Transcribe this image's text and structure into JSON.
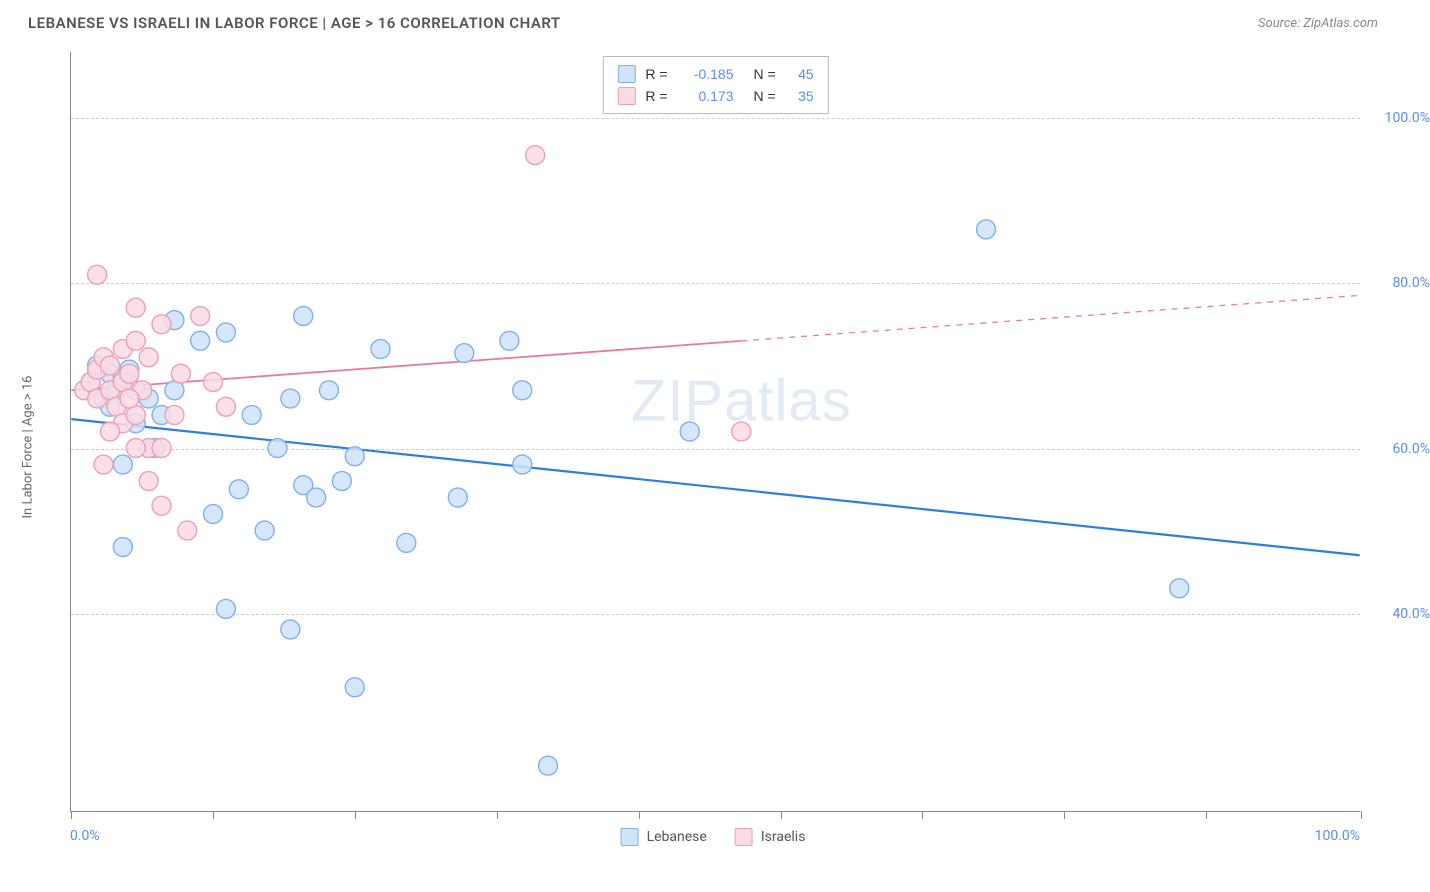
{
  "title": "LEBANESE VS ISRAELI IN LABOR FORCE | AGE > 16 CORRELATION CHART",
  "source": "Source: ZipAtlas.com",
  "watermark_a": "ZIP",
  "watermark_b": "atlas",
  "chart": {
    "type": "scatter",
    "ylabel": "In Labor Force | Age > 16",
    "xlim": [
      0,
      100
    ],
    "ylim": [
      16,
      108
    ],
    "xtick_positions": [
      0,
      11,
      22,
      33,
      44,
      55,
      66,
      77,
      88,
      100
    ],
    "ytick_positions": [
      40,
      60,
      80,
      100
    ],
    "ytick_labels": [
      "40.0%",
      "60.0%",
      "80.0%",
      "100.0%"
    ],
    "x_left_label": "0.0%",
    "x_right_label": "100.0%",
    "grid_color": "#cccccc",
    "axis_color": "#888888",
    "background_color": "#ffffff",
    "marker_radius": 9.5,
    "marker_stroke_width": 1.4,
    "series": [
      {
        "name": "Lebanese",
        "fill": "#cfe3fb",
        "stroke": "#7fb1ec",
        "swatch_fill": "#cfe3fb",
        "swatch_stroke": "#7fb1ec",
        "trend": {
          "color": "#2f7de1",
          "width": 2.2,
          "y_at_x0": 63.5,
          "y_at_x100": 47,
          "solid_until_x": 100
        },
        "R": "-0.185",
        "N": "45",
        "points": [
          [
            1.5,
            68
          ],
          [
            2,
            70
          ],
          [
            2.5,
            66
          ],
          [
            3,
            69
          ],
          [
            3.5,
            67
          ],
          [
            4,
            68.5
          ],
          [
            4.5,
            69.5
          ],
          [
            3,
            65
          ],
          [
            5,
            67
          ],
          [
            6,
            66
          ],
          [
            7,
            64
          ],
          [
            8,
            67
          ],
          [
            5,
            63
          ],
          [
            6.5,
            60
          ],
          [
            4,
            58
          ],
          [
            8,
            75.5
          ],
          [
            10,
            73
          ],
          [
            12,
            74
          ],
          [
            14,
            64
          ],
          [
            16,
            60
          ],
          [
            17,
            66
          ],
          [
            18,
            76
          ],
          [
            20,
            67
          ],
          [
            21,
            56
          ],
          [
            22,
            59
          ],
          [
            11,
            52
          ],
          [
            12,
            40.5
          ],
          [
            13,
            55
          ],
          [
            15,
            50
          ],
          [
            17,
            38
          ],
          [
            18,
            55.5
          ],
          [
            19,
            54
          ],
          [
            26,
            48.5
          ],
          [
            30,
            54
          ],
          [
            30.5,
            71.5
          ],
          [
            34,
            73
          ],
          [
            35,
            58
          ],
          [
            35,
            67
          ],
          [
            24,
            72
          ],
          [
            22,
            31
          ],
          [
            37,
            21.5
          ],
          [
            48,
            62
          ],
          [
            71,
            86.5
          ],
          [
            86,
            43
          ],
          [
            4,
            48
          ]
        ]
      },
      {
        "name": "Israelis",
        "fill": "#fadbe4",
        "stroke": "#ec9fb8",
        "swatch_fill": "#fadbe4",
        "swatch_stroke": "#ec9fb8",
        "trend": {
          "color": "#e37ba0",
          "width": 1.8,
          "y_at_x0": 67,
          "y_at_x100": 78.5,
          "solid_until_x": 52
        },
        "R": "0.173",
        "N": "35",
        "points": [
          [
            1,
            67
          ],
          [
            1.5,
            68
          ],
          [
            2,
            69.5
          ],
          [
            2,
            66
          ],
          [
            2.5,
            71
          ],
          [
            3,
            70
          ],
          [
            3,
            67
          ],
          [
            3.5,
            65
          ],
          [
            4,
            72
          ],
          [
            4,
            68
          ],
          [
            4,
            63
          ],
          [
            4.5,
            69
          ],
          [
            5,
            73
          ],
          [
            5,
            64
          ],
          [
            5.5,
            67
          ],
          [
            6,
            71
          ],
          [
            6,
            60
          ],
          [
            7,
            75
          ],
          [
            7,
            53
          ],
          [
            8,
            64
          ],
          [
            8.5,
            69
          ],
          [
            2,
            81
          ],
          [
            10,
            76
          ],
          [
            11,
            68
          ],
          [
            12,
            65
          ],
          [
            9,
            50
          ],
          [
            5,
            77
          ],
          [
            7,
            60
          ],
          [
            3,
            62
          ],
          [
            2.5,
            58
          ],
          [
            6,
            56
          ],
          [
            5,
            60
          ],
          [
            52,
            62
          ],
          [
            36,
            95.5
          ],
          [
            4.5,
            66
          ]
        ]
      }
    ],
    "legend_bottom": [
      {
        "label": "Lebanese",
        "fill": "#cfe3fb",
        "stroke": "#7fb1ec"
      },
      {
        "label": "Israelis",
        "fill": "#fadbe4",
        "stroke": "#ec9fb8"
      }
    ]
  }
}
